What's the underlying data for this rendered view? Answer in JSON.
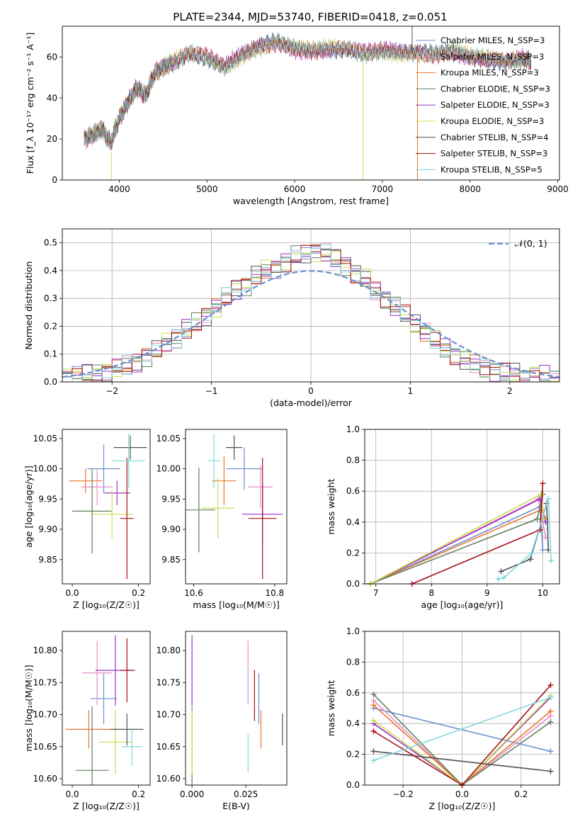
{
  "title": "PLATE=2344, MJD=53740, FIBERID=0418, z=0.051",
  "chart_data": [
    {
      "id": "spectrum",
      "type": "line",
      "xlabel": "wavelength [Angstrom, rest frame]",
      "ylabel": "Flux [f_λ 10⁻¹⁷ erg cm⁻² s⁻¹ A⁻¹]",
      "xlim": [
        3350,
        9020
      ],
      "ylim": [
        0,
        75
      ],
      "xticks": [
        4000,
        5000,
        6000,
        7000,
        8000,
        9000
      ],
      "yticks": [
        0,
        20,
        40,
        60
      ],
      "x": [
        3600,
        3700,
        3800,
        3900,
        4000,
        4100,
        4200,
        4300,
        4400,
        4500,
        4600,
        4800,
        5000,
        5200,
        5400,
        5600,
        5800,
        6000,
        6200,
        6400,
        6600,
        6800,
        7000,
        7200,
        7400,
        7600,
        7800,
        8000,
        8200,
        8400,
        8600,
        8700
      ],
      "y": [
        20,
        22,
        25,
        18,
        30,
        38,
        45,
        41,
        52,
        55,
        57,
        62,
        60,
        55,
        61,
        65,
        67,
        64,
        63,
        64,
        64,
        62,
        63,
        62,
        62,
        61,
        63,
        60,
        59,
        58,
        59,
        58
      ],
      "legend": [
        {
          "label": "Chabrier MILES, N_SSP=3",
          "color": "#6b8fd1"
        },
        {
          "label": "Salpeter MILES, N_SSP=3",
          "color": "#e58fc9"
        },
        {
          "label": "Kroupa MILES, N_SSP=3",
          "color": "#e9772d"
        },
        {
          "label": "Chabrier ELODIE, N_SSP=3",
          "color": "#5f7f5f"
        },
        {
          "label": "Salpeter ELODIE, N_SSP=3",
          "color": "#9b30c8"
        },
        {
          "label": "Kroupa ELODIE, N_SSP=3",
          "color": "#c8e04f"
        },
        {
          "label": "Chabrier STELIB, N_SSP=4",
          "color": "#505050"
        },
        {
          "label": "Salpeter STELIB, N_SSP=3",
          "color": "#a50f15"
        },
        {
          "label": "Kroupa STELIB, N_SSP=5",
          "color": "#7fd8dd"
        }
      ]
    },
    {
      "id": "residuals",
      "type": "bar",
      "xlabel": "(data-model)/error",
      "ylabel": "Normed distribution",
      "xlim": [
        -2.5,
        2.5
      ],
      "ylim": [
        0,
        0.55
      ],
      "xticks": [
        -2,
        -1,
        0,
        1,
        2
      ],
      "yticks": [
        0.0,
        0.1,
        0.2,
        0.3,
        0.4,
        0.5
      ],
      "bin_width": 0.1,
      "histogram": [
        0.02,
        0.02,
        0.03,
        0.03,
        0.04,
        0.05,
        0.06,
        0.07,
        0.09,
        0.11,
        0.14,
        0.16,
        0.19,
        0.21,
        0.24,
        0.27,
        0.3,
        0.33,
        0.35,
        0.38,
        0.4,
        0.41,
        0.43,
        0.45,
        0.46,
        0.47,
        0.46,
        0.44,
        0.42,
        0.39,
        0.37,
        0.33,
        0.3,
        0.27,
        0.24,
        0.21,
        0.18,
        0.15,
        0.12,
        0.1,
        0.08,
        0.06,
        0.05,
        0.04,
        0.03,
        0.03,
        0.02,
        0.02,
        0.02,
        0.01
      ],
      "legend": [
        {
          "label": "𝒩(0, 1)",
          "color": "#6b8fd1",
          "style": "dashed"
        }
      ]
    },
    {
      "id": "age-vs-Z",
      "type": "scatter",
      "xlabel": "Z [log₁₀(Z/Z☉)]",
      "ylabel": "age  [log₁₀(age/yr)]",
      "xlim": [
        -0.03,
        0.235
      ],
      "ylim": [
        9.81,
        10.065
      ],
      "xticks": [
        0.0,
        0.2
      ],
      "yticks": [
        9.85,
        9.9,
        9.95,
        10.0,
        10.05
      ],
      "points": [
        {
          "x": 0.095,
          "y": 10.0,
          "xerr": 0.05,
          "yerr": 0.04,
          "color": "#6b8fd1"
        },
        {
          "x": 0.075,
          "y": 9.97,
          "xerr": 0.048,
          "yerr": 0.03,
          "color": "#e58fc9"
        },
        {
          "x": 0.04,
          "y": 9.98,
          "xerr": 0.05,
          "yerr": 0.02,
          "color": "#e9772d"
        },
        {
          "x": 0.06,
          "y": 9.93,
          "xerr": 0.06,
          "yerr": 0.07,
          "color": "#5f7f5f"
        },
        {
          "x": 0.135,
          "y": 9.96,
          "xerr": 0.04,
          "yerr": 0.02,
          "color": "#9b30c8"
        },
        {
          "x": 0.12,
          "y": 9.925,
          "xerr": 0.06,
          "yerr": 0.04,
          "color": "#c8e04f"
        },
        {
          "x": 0.175,
          "y": 10.035,
          "xerr": 0.05,
          "yerr": 0.02,
          "color": "#505050"
        },
        {
          "x": 0.165,
          "y": 9.918,
          "xerr": 0.02,
          "yerr": 0.1,
          "color": "#a50f15"
        },
        {
          "x": 0.17,
          "y": 10.013,
          "xerr": 0.05,
          "yerr": 0.045,
          "color": "#7fd8dd"
        }
      ]
    },
    {
      "id": "age-vs-mass",
      "type": "scatter",
      "xlabel": "mass [log₁₀(M/M☉)]",
      "ylabel": "",
      "xlim": [
        10.58,
        10.83
      ],
      "ylim": [
        9.81,
        10.065
      ],
      "xticks": [
        10.6,
        10.8
      ],
      "yticks": [
        9.85,
        9.9,
        9.95,
        10.0,
        10.05
      ],
      "points": [
        {
          "x": 10.725,
          "y": 10.0,
          "xerr": 0.045,
          "yerr": 0.035,
          "color": "#6b8fd1"
        },
        {
          "x": 10.765,
          "y": 9.97,
          "xerr": 0.03,
          "yerr": 0.035,
          "color": "#e58fc9"
        },
        {
          "x": 10.675,
          "y": 9.98,
          "xerr": 0.03,
          "yerr": 0.04,
          "color": "#e9772d"
        },
        {
          "x": 10.613,
          "y": 9.932,
          "xerr": 0.04,
          "yerr": 0.07,
          "color": "#5f7f5f"
        },
        {
          "x": 10.77,
          "y": 9.925,
          "xerr": 0.05,
          "yerr": 0.05,
          "color": "#9b30c8"
        },
        {
          "x": 10.66,
          "y": 9.935,
          "xerr": 0.04,
          "yerr": 0.05,
          "color": "#c8e04f"
        },
        {
          "x": 10.7,
          "y": 10.035,
          "xerr": 0.02,
          "yerr": 0.02,
          "color": "#505050"
        },
        {
          "x": 10.77,
          "y": 9.918,
          "xerr": 0.035,
          "yerr": 0.1,
          "color": "#a50f15"
        },
        {
          "x": 10.65,
          "y": 10.013,
          "xerr": 0.015,
          "yerr": 0.045,
          "color": "#7fd8dd"
        }
      ]
    },
    {
      "id": "massweight-vs-age",
      "type": "line",
      "xlabel": "age  [log₁₀(age/yr)]",
      "ylabel": "mass weight",
      "xlim": [
        6.8,
        10.3
      ],
      "ylim": [
        0,
        1
      ],
      "xticks": [
        7,
        8,
        9,
        10
      ],
      "yticks": [
        0.0,
        0.2,
        0.4,
        0.6,
        0.8,
        1.0
      ],
      "series": [
        {
          "color": "#6b8fd1",
          "x": [
            6.9,
            9.95,
            10.0
          ],
          "y": [
            0.0,
            0.5,
            0.22
          ]
        },
        {
          "color": "#e58fc9",
          "x": [
            6.9,
            9.92,
            10.05
          ],
          "y": [
            0.0,
            0.55,
            0.3
          ]
        },
        {
          "color": "#e9772d",
          "x": [
            6.9,
            9.97,
            10.05
          ],
          "y": [
            0.0,
            0.48,
            0.42
          ]
        },
        {
          "color": "#5f7f5f",
          "x": [
            6.9,
            9.9,
            10.0
          ],
          "y": [
            0.0,
            0.42,
            0.58
          ]
        },
        {
          "color": "#9b30c8",
          "x": [
            6.9,
            9.95,
            10.05
          ],
          "y": [
            0.0,
            0.55,
            0.4
          ]
        },
        {
          "color": "#c8e04f",
          "x": [
            6.9,
            9.97,
            10.02
          ],
          "y": [
            0.0,
            0.58,
            0.42
          ]
        },
        {
          "color": "#505050",
          "x": [
            9.25,
            9.78,
            10.07,
            10.1
          ],
          "y": [
            0.08,
            0.16,
            0.52,
            0.22
          ]
        },
        {
          "color": "#a50f15",
          "x": [
            7.65,
            9.95,
            10.0
          ],
          "y": [
            0.0,
            0.35,
            0.65
          ]
        },
        {
          "color": "#7fd8dd",
          "x": [
            9.2,
            9.3,
            9.8,
            10.1,
            10.15
          ],
          "y": [
            0.03,
            0.04,
            0.2,
            0.55,
            0.15
          ]
        }
      ]
    },
    {
      "id": "mass-vs-Z",
      "type": "scatter",
      "xlabel": "Z [log₁₀(Z/Z☉)]",
      "ylabel": "mass [log₁₀(M/M☉)]",
      "xlim": [
        -0.03,
        0.235
      ],
      "ylim": [
        10.59,
        10.83
      ],
      "xticks": [
        0.0,
        0.2
      ],
      "yticks": [
        10.6,
        10.65,
        10.7,
        10.75,
        10.8
      ],
      "points": [
        {
          "x": 0.095,
          "y": 10.725,
          "xerr": 0.04,
          "yerr": 0.04,
          "color": "#6b8fd1"
        },
        {
          "x": 0.075,
          "y": 10.765,
          "xerr": 0.045,
          "yerr": 0.05,
          "color": "#e58fc9"
        },
        {
          "x": 0.05,
          "y": 10.677,
          "xerr": 0.07,
          "yerr": 0.03,
          "color": "#e9772d"
        },
        {
          "x": 0.06,
          "y": 10.613,
          "xerr": 0.05,
          "yerr": 0.1,
          "color": "#5f7f5f"
        },
        {
          "x": 0.13,
          "y": 10.769,
          "xerr": 0.06,
          "yerr": 0.055,
          "color": "#9b30c8"
        },
        {
          "x": 0.13,
          "y": 10.657,
          "xerr": 0.05,
          "yerr": 0.05,
          "color": "#c8e04f"
        },
        {
          "x": 0.165,
          "y": 10.677,
          "xerr": 0.05,
          "yerr": 0.025,
          "color": "#505050"
        },
        {
          "x": 0.165,
          "y": 10.769,
          "xerr": 0.02,
          "yerr": 0.05,
          "color": "#a50f15"
        },
        {
          "x": 0.18,
          "y": 10.65,
          "xerr": 0.03,
          "yerr": 0.03,
          "color": "#7fd8dd"
        }
      ]
    },
    {
      "id": "mass-vs-EBV",
      "type": "scatter",
      "xlabel": "E(B-V)",
      "ylabel": "",
      "xlim": [
        -0.003,
        0.044
      ],
      "ylim": [
        10.59,
        10.83
      ],
      "xticks": [
        0.0,
        0.025
      ],
      "yticks": [
        10.6,
        10.65,
        10.7,
        10.75,
        10.8
      ],
      "points": [
        {
          "x": 0.031,
          "y": 10.725,
          "yerr": 0.04,
          "color": "#6b8fd1"
        },
        {
          "x": 0.026,
          "y": 10.765,
          "yerr": 0.05,
          "color": "#e58fc9"
        },
        {
          "x": 0.032,
          "y": 10.677,
          "yerr": 0.03,
          "color": "#e9772d"
        },
        {
          "x": 0.0,
          "y": 10.613,
          "yerr": 0.1,
          "color": "#5f7f5f"
        },
        {
          "x": 0.0,
          "y": 10.769,
          "yerr": 0.055,
          "color": "#9b30c8"
        },
        {
          "x": 0.0,
          "y": 10.657,
          "yerr": 0.05,
          "color": "#c8e04f"
        },
        {
          "x": 0.042,
          "y": 10.677,
          "yerr": 0.025,
          "color": "#505050"
        },
        {
          "x": 0.029,
          "y": 10.73,
          "yerr": 0.04,
          "color": "#a50f15"
        },
        {
          "x": 0.026,
          "y": 10.64,
          "yerr": 0.03,
          "color": "#7fd8dd"
        }
      ]
    },
    {
      "id": "massweight-vs-Z",
      "type": "line",
      "xlabel": "Z [log₁₀(Z/Z☉)]",
      "ylabel": "mass weight",
      "xlim": [
        -0.33,
        0.33
      ],
      "ylim": [
        0,
        1
      ],
      "xticks": [
        -0.2,
        0.0,
        0.2
      ],
      "yticks": [
        0.0,
        0.2,
        0.4,
        0.6,
        0.8,
        1.0
      ],
      "series": [
        {
          "color": "#6b8fd1",
          "x": [
            -0.3,
            0.3
          ],
          "y": [
            0.5,
            0.22
          ]
        },
        {
          "color": "#e58fc9",
          "x": [
            -0.3,
            0.0,
            0.3
          ],
          "y": [
            0.55,
            0.0,
            0.45
          ]
        },
        {
          "color": "#e9772d",
          "x": [
            -0.3,
            0.0,
            0.3
          ],
          "y": [
            0.52,
            0.0,
            0.48
          ]
        },
        {
          "color": "#5f7f5f",
          "x": [
            -0.3,
            0.0,
            0.3
          ],
          "y": [
            0.59,
            0.0,
            0.41
          ]
        },
        {
          "color": "#9b30c8",
          "x": [
            -0.3,
            0.0,
            0.3
          ],
          "y": [
            0.4,
            0.0,
            0.57
          ]
        },
        {
          "color": "#c8e04f",
          "x": [
            -0.3,
            0.0,
            0.3
          ],
          "y": [
            0.42,
            0.0,
            0.58
          ]
        },
        {
          "color": "#505050",
          "x": [
            -0.3,
            0.3
          ],
          "y": [
            0.22,
            0.09
          ]
        },
        {
          "color": "#a50f15",
          "x": [
            -0.3,
            0.0,
            0.3
          ],
          "y": [
            0.35,
            0.0,
            0.65
          ]
        },
        {
          "color": "#7fd8dd",
          "x": [
            -0.3,
            0.3
          ],
          "y": [
            0.16,
            0.57
          ]
        }
      ]
    }
  ]
}
